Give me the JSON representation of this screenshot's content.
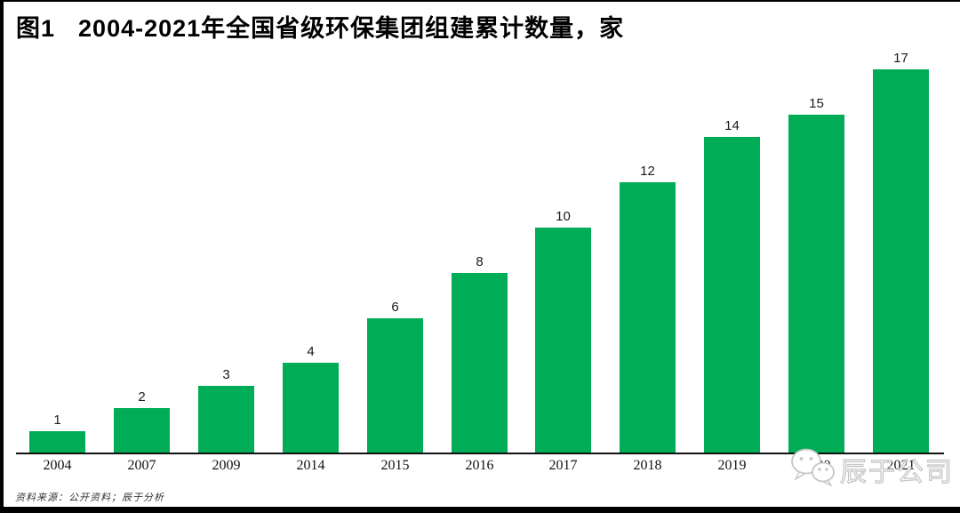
{
  "header": {
    "figure_label": "图1",
    "title": "2004-2021年全国省级环保集团组建累计数量，家"
  },
  "chart_data": {
    "type": "bar",
    "title": "图1 2004-2021年全国省级环保集团组建累计数量，家",
    "unit": "家",
    "categories": [
      "2004",
      "2007",
      "2009",
      "2014",
      "2015",
      "2016",
      "2017",
      "2018",
      "2019",
      "2020",
      "2021"
    ],
    "values": [
      1,
      2,
      3,
      4,
      6,
      8,
      10,
      12,
      14,
      15,
      17
    ],
    "series_name": "全国省级环保集团组建累计数量",
    "xlabel": "",
    "ylabel": "",
    "ylim": [
      0,
      17
    ],
    "grid": false,
    "legend_position": "none",
    "value_labels_shown": true,
    "bar_color": "#00AC55",
    "axis_color": "#111111"
  },
  "footer": {
    "source": "资料来源：公开资料；辰于分析"
  },
  "watermark": {
    "icon": "wechat-icon",
    "text": "辰于公司",
    "color": "#c3c3c3"
  }
}
